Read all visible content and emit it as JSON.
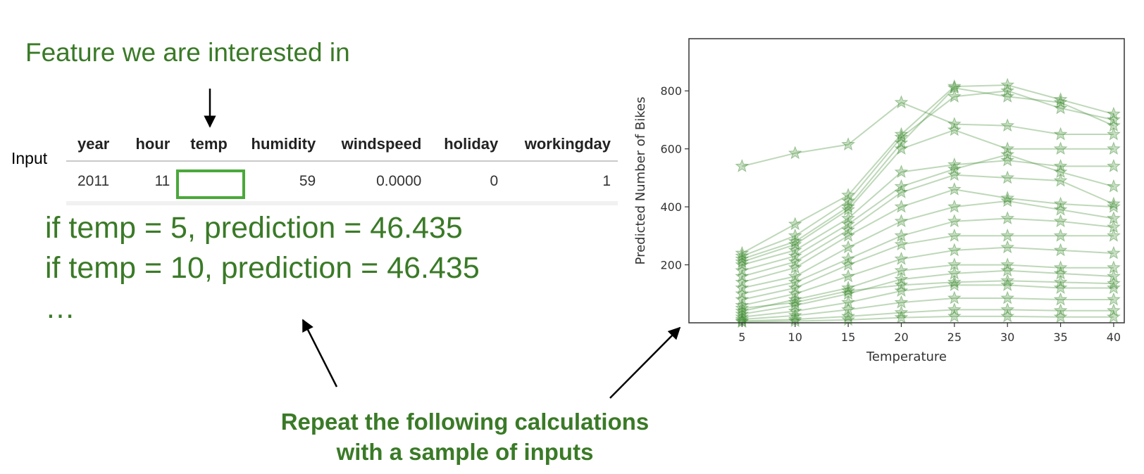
{
  "annotations": {
    "heading": "Feature we are interested in",
    "input_label": "Input",
    "prediction_lines": [
      "if temp = 5, prediction = 46.435",
      "if temp = 10, prediction = 46.435",
      "…"
    ],
    "repeat_lines": [
      "Repeat the following calculations",
      "with a sample of inputs"
    ],
    "text_color": "#3a7a27",
    "highlight_color": "#4aa83a"
  },
  "table": {
    "columns": [
      "year",
      "hour",
      "temp",
      "humidity",
      "windspeed",
      "holiday",
      "workingday"
    ],
    "row": [
      "2011",
      "11",
      "",
      "59",
      "0.0000",
      "0",
      "1"
    ]
  },
  "chart_data": {
    "type": "line",
    "marker": "star",
    "color": "#3a8a2c",
    "xlabel": "Temperature",
    "ylabel": "Predicted Number of Bikes",
    "x": [
      5,
      10,
      15,
      20,
      25,
      30,
      35,
      40
    ],
    "xticks": [
      5,
      10,
      15,
      20,
      25,
      30,
      35,
      40
    ],
    "yticks": [
      200,
      400,
      600,
      800
    ],
    "xlim": [
      0,
      41
    ],
    "ylim": [
      0,
      980
    ],
    "grid": false,
    "series": [
      {
        "values": [
          540,
          585,
          615,
          760,
          685,
          680,
          650,
          650
        ]
      },
      {
        "values": [
          240,
          340,
          440,
          650,
          815,
          820,
          770,
          720
        ]
      },
      {
        "values": [
          230,
          300,
          420,
          640,
          780,
          800,
          740,
          700
        ]
      },
      {
        "values": [
          220,
          280,
          400,
          620,
          810,
          780,
          760,
          680
        ]
      },
      {
        "values": [
          210,
          270,
          390,
          600,
          665,
          600,
          600,
          600
        ]
      },
      {
        "values": [
          200,
          250,
          360,
          520,
          545,
          560,
          540,
          540
        ]
      },
      {
        "values": [
          180,
          230,
          340,
          470,
          530,
          580,
          520,
          470
        ]
      },
      {
        "values": [
          160,
          210,
          320,
          450,
          510,
          500,
          490,
          410
        ]
      },
      {
        "values": [
          140,
          190,
          300,
          400,
          460,
          430,
          410,
          400
        ]
      },
      {
        "values": [
          120,
          160,
          260,
          350,
          400,
          420,
          390,
          360
        ]
      },
      {
        "values": [
          100,
          140,
          220,
          300,
          350,
          360,
          350,
          330
        ]
      },
      {
        "values": [
          80,
          120,
          200,
          270,
          300,
          300,
          300,
          300
        ]
      },
      {
        "values": [
          60,
          100,
          160,
          220,
          250,
          260,
          250,
          240
        ]
      },
      {
        "values": [
          40,
          80,
          120,
          180,
          200,
          200,
          190,
          190
        ]
      },
      {
        "values": [
          30,
          60,
          100,
          150,
          170,
          180,
          170,
          160
        ]
      },
      {
        "values": [
          20,
          40,
          70,
          110,
          130,
          130,
          120,
          120
        ]
      },
      {
        "values": [
          12,
          25,
          45,
          70,
          85,
          85,
          80,
          80
        ]
      },
      {
        "values": [
          6,
          12,
          22,
          35,
          45,
          45,
          42,
          42
        ]
      },
      {
        "values": [
          3,
          6,
          10,
          18,
          22,
          22,
          20,
          20
        ]
      },
      {
        "values": [
          50,
          70,
          110,
          130,
          140,
          145,
          140,
          135
        ]
      }
    ]
  }
}
